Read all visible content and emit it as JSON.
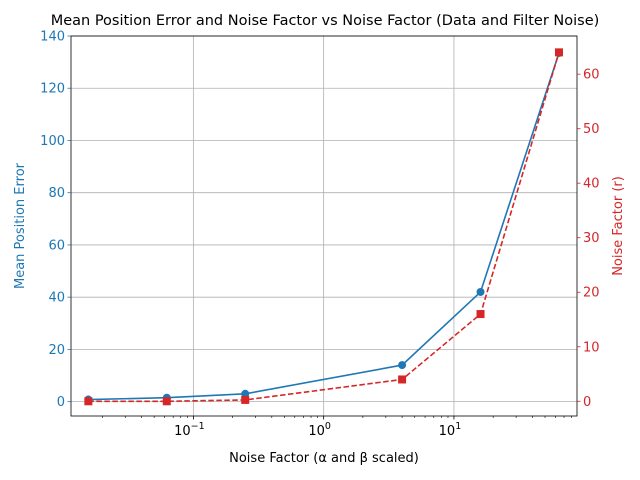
{
  "colors": {
    "left_series": "#1f77b4",
    "right_series": "#d62728",
    "grid": "#b0b0b0",
    "axis": "#000000",
    "text": "#000000"
  },
  "chart_data": {
    "type": "line",
    "title": "Mean Position Error and Noise Factor vs Noise Factor (Data and Filter Noise)",
    "xlabel": "Noise Factor (α and β scaled)",
    "ylabel_left": "Mean Position Error",
    "ylabel_right": "Noise Factor (r)",
    "x_scale": "log",
    "x_range": [
      0.0115,
      88
    ],
    "x_tick_values": [
      0.1,
      1,
      10
    ],
    "x_tick_labels": [
      {
        "base": "10",
        "exp": "−1"
      },
      {
        "base": "10",
        "exp": "0"
      },
      {
        "base": "10",
        "exp": "1"
      }
    ],
    "y_left_range": [
      -5.5,
      140
    ],
    "y_left_ticks": [
      0,
      20,
      40,
      60,
      80,
      100,
      120,
      140
    ],
    "y_right_range": [
      -2.7,
      67
    ],
    "y_right_ticks": [
      0,
      10,
      20,
      30,
      40,
      50,
      60
    ],
    "grid": true,
    "x": [
      0.015625,
      0.0625,
      0.25,
      4,
      16,
      64
    ],
    "series": [
      {
        "axis": "left",
        "marker": "circle",
        "linestyle": "solid",
        "values": [
          0.8,
          1.5,
          3.0,
          14.0,
          42.0,
          133.5
        ]
      },
      {
        "axis": "right",
        "marker": "square",
        "linestyle": "dashed",
        "values": [
          0.0,
          0.0,
          0.25,
          4.0,
          16.0,
          64.0
        ]
      }
    ]
  }
}
